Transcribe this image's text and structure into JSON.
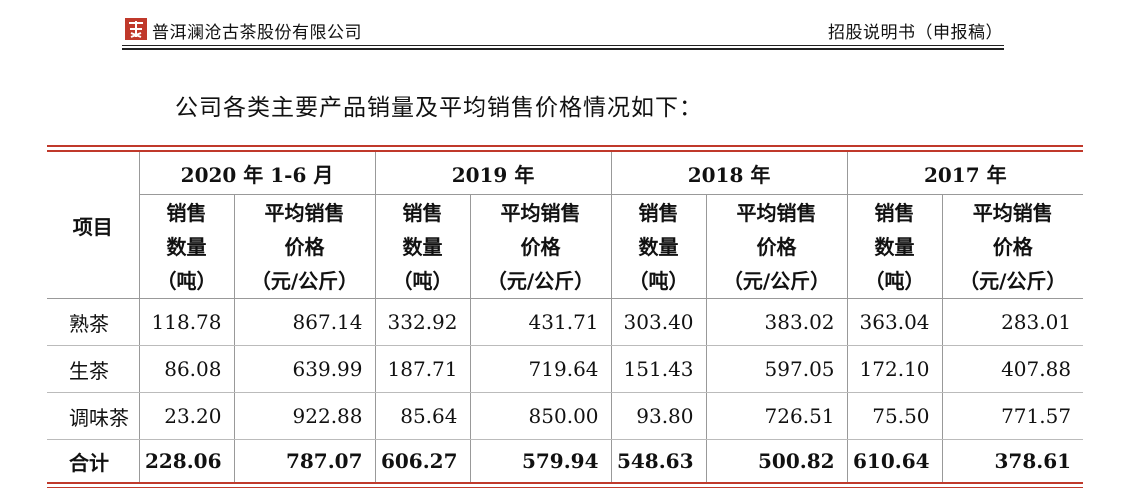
{
  "header": {
    "company": "普洱澜沧古茶股份有限公司",
    "doc_type": "招股说明书（申报稿）",
    "logo_color": "#c0392b"
  },
  "intro": "公司各类主要产品销量及平均销售价格情况如下：",
  "table": {
    "item_header": "项目",
    "periods": [
      "2020 年 1-6 月",
      "2019 年",
      "2018 年",
      "2017 年"
    ],
    "qty_header": [
      "销售",
      "数量",
      "（吨）"
    ],
    "price_header": [
      "平均销售",
      "价格",
      "（元/公斤）"
    ],
    "rows": [
      {
        "name": "熟茶",
        "values": [
          "118.78",
          "867.14",
          "332.92",
          "431.71",
          "303.40",
          "383.02",
          "363.04",
          "283.01"
        ]
      },
      {
        "name": "生茶",
        "values": [
          "86.08",
          "639.99",
          "187.71",
          "719.64",
          "151.43",
          "597.05",
          "172.10",
          "407.88"
        ]
      },
      {
        "name": "调味茶",
        "values": [
          "23.20",
          "922.88",
          "85.64",
          "850.00",
          "93.80",
          "726.51",
          "75.50",
          "771.57"
        ]
      }
    ],
    "total": {
      "name": "合计",
      "values": [
        "228.06",
        "787.07",
        "606.27",
        "579.94",
        "548.63",
        "500.82",
        "610.64",
        "378.61"
      ]
    },
    "accent_color": "#c0392b"
  }
}
